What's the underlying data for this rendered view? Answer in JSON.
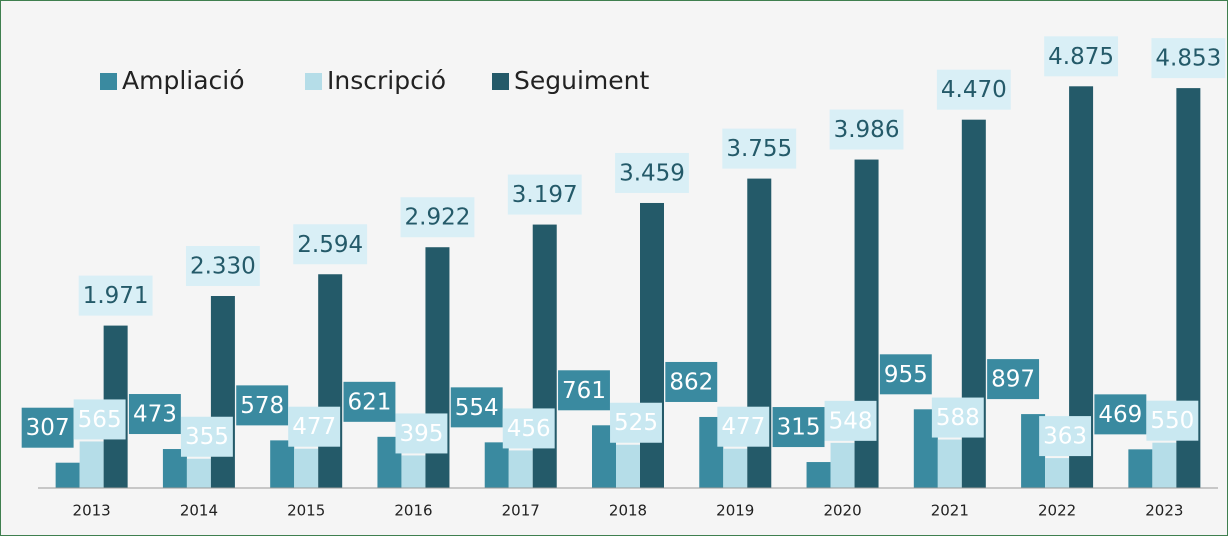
{
  "chart_data": {
    "type": "bar",
    "categories": [
      "2013",
      "2014",
      "2015",
      "2016",
      "2017",
      "2018",
      "2019",
      "2020",
      "2021",
      "2022",
      "2023"
    ],
    "series": [
      {
        "name": "Ampliació",
        "color": "#3a8aa0",
        "values": [
          307,
          473,
          578,
          621,
          554,
          761,
          862,
          315,
          955,
          897,
          469
        ],
        "value_labels": [
          "307",
          "473",
          "578",
          "621",
          "554",
          "761",
          "862",
          "315",
          "955",
          "897",
          "469"
        ]
      },
      {
        "name": "Inscripció",
        "color": "#b5dde8",
        "values": [
          565,
          355,
          477,
          395,
          456,
          525,
          477,
          548,
          588,
          363,
          550
        ],
        "value_labels": [
          "565",
          "355",
          "477",
          "395",
          "456",
          "525",
          "477",
          "548",
          "588",
          "363",
          "550"
        ]
      },
      {
        "name": "Seguiment",
        "color": "#245a69",
        "values": [
          1971,
          2330,
          2594,
          2922,
          3197,
          3459,
          3755,
          3986,
          4470,
          4875,
          4853
        ],
        "value_labels": [
          "1.971",
          "2.330",
          "2.594",
          "2.922",
          "3.197",
          "3.459",
          "3.755",
          "3.986",
          "4.470",
          "4.875",
          "4.853"
        ]
      }
    ],
    "ylim": [
      0,
      5000
    ],
    "legend": "top-left"
  }
}
